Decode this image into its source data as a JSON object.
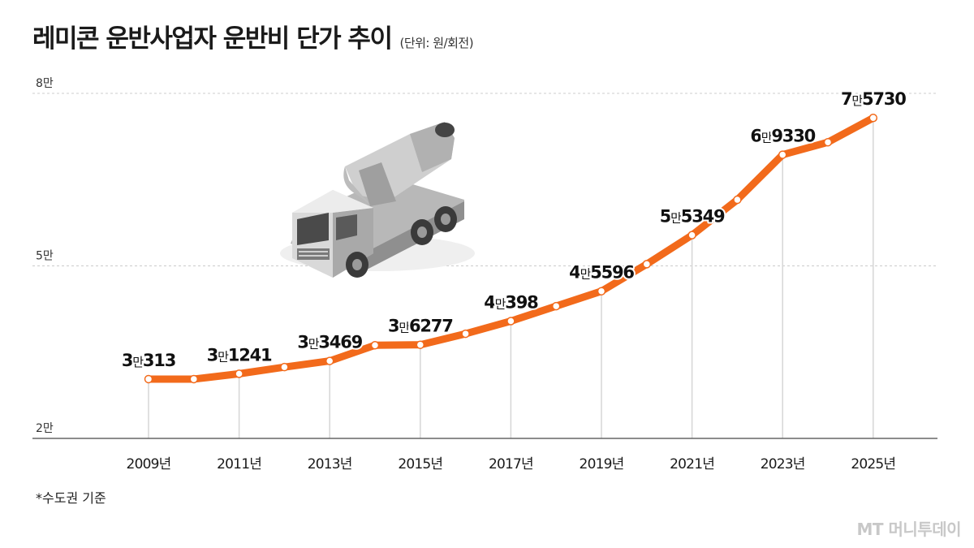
{
  "header": {
    "title": "레미콘 운반사업자 운반비 단가 추이",
    "unit": "(단위: 원/회전)"
  },
  "footer": {
    "note": "*수도권 기준",
    "watermark": "MT 머니투데이"
  },
  "colors": {
    "line": "#f26a1b",
    "marker_fill": "#ffffff",
    "gridline": "#cccccc",
    "dropline": "#d6d6d6",
    "baseline": "#666666"
  },
  "chart_data": {
    "type": "line",
    "title": "레미콘 운반사업자 운반비 단가 추이",
    "unit": "(단위: 원/회전)",
    "x": [
      2009,
      2010,
      2011,
      2012,
      2013,
      2014,
      2015,
      2016,
      2017,
      2018,
      2019,
      2020,
      2021,
      2022,
      2023,
      2024,
      2025
    ],
    "values": [
      30313,
      30313,
      31241,
      32400,
      33469,
      36200,
      36277,
      38200,
      40398,
      43000,
      45596,
      50300,
      55349,
      61500,
      69330,
      71500,
      75730
    ],
    "x_tick_labels": [
      "2009년",
      "2011년",
      "2013년",
      "2015년",
      "2017년",
      "2019년",
      "2021년",
      "2023년",
      "2025년"
    ],
    "y_ticks": [
      {
        "value": 20000,
        "label": "2만"
      },
      {
        "value": 50000,
        "label": "5만"
      },
      {
        "value": 80000,
        "label": "8만"
      }
    ],
    "ylim": [
      20000,
      80000
    ],
    "data_labels": [
      {
        "year": 2009,
        "man": "3만",
        "rest": "313"
      },
      {
        "year": 2011,
        "man": "3만",
        "rest": "1241"
      },
      {
        "year": 2013,
        "man": "3만",
        "rest": "3469"
      },
      {
        "year": 2015,
        "man": "3만",
        "rest": "6277"
      },
      {
        "year": 2017,
        "man": "4만",
        "rest": "398"
      },
      {
        "year": 2019,
        "man": "4만",
        "rest": "5596"
      },
      {
        "year": 2021,
        "man": "5만",
        "rest": "5349"
      },
      {
        "year": 2023,
        "man": "6만",
        "rest": "9330"
      },
      {
        "year": 2025,
        "man": "7만",
        "rest": "5730"
      }
    ],
    "grid": true,
    "legend": "none",
    "illustration": "concrete-mixer-truck"
  }
}
